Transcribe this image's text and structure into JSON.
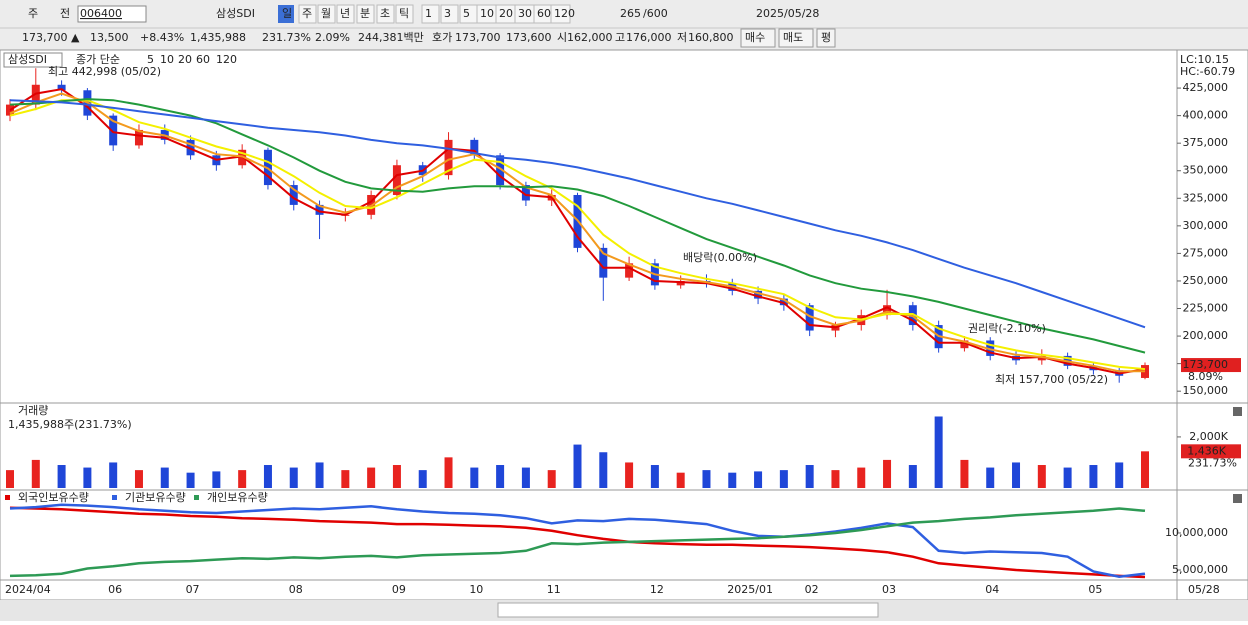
{
  "toolbar": {
    "row1": [
      "주",
      "전",
      "006400",
      "삼성SDI",
      "일",
      "주",
      "월",
      "년",
      "분",
      "초",
      "틱",
      "1",
      "3",
      "5",
      "10",
      "20",
      "30",
      "60",
      "120",
      "265",
      "/600",
      "2025/05/28"
    ],
    "row2": [
      "173,700 ▲",
      "13,500",
      "+8.43%",
      "1,435,988",
      "231.73%",
      "2.09%",
      "244,381백만",
      "호가",
      "173,700",
      "173,600",
      "시",
      "162,000",
      "고",
      "176,000",
      "저",
      "160,800",
      "매수",
      "매도",
      "평"
    ]
  },
  "chart_data": [
    {
      "type": "candlestick",
      "title": "삼성SDI",
      "subtitle": "종가 단순",
      "categories": [
        "2024/04",
        null,
        null,
        null,
        "06",
        null,
        null,
        "07",
        null,
        null,
        null,
        "08",
        null,
        null,
        null,
        "09",
        null,
        null,
        "10",
        null,
        null,
        "11",
        null,
        null,
        null,
        "12",
        null,
        null,
        "2025/01",
        null,
        null,
        "02",
        null,
        null,
        "03",
        null,
        null,
        null,
        "04",
        null,
        null,
        null,
        "05",
        null,
        null
      ],
      "open": [
        400000,
        410000,
        428000,
        423000,
        400000,
        373000,
        387000,
        378000,
        364000,
        355000,
        369000,
        337000,
        319000,
        310000,
        310000,
        328000,
        355000,
        346000,
        378000,
        364000,
        337000,
        323000,
        328000,
        280000,
        253000,
        266000,
        246000,
        250000,
        248000,
        241000,
        234000,
        228000,
        205000,
        210000,
        219000,
        228000,
        210000,
        189000,
        196000,
        182000,
        178000,
        182000,
        173000,
        169000,
        162000
      ],
      "high": [
        415000,
        442998,
        432000,
        425000,
        402000,
        392000,
        392000,
        382000,
        368000,
        374000,
        371000,
        341000,
        323000,
        316000,
        332000,
        360000,
        358000,
        385000,
        380000,
        366000,
        340000,
        333000,
        330000,
        284000,
        272000,
        270000,
        255000,
        256000,
        252000,
        245000,
        238000,
        230000,
        213000,
        224000,
        242000,
        231000,
        214000,
        200000,
        199000,
        186000,
        188000,
        185000,
        176000,
        171000,
        176000
      ],
      "low": [
        395000,
        405000,
        418000,
        396000,
        368000,
        370000,
        374000,
        360000,
        350000,
        352000,
        333000,
        314000,
        288000,
        304000,
        306000,
        324000,
        340000,
        342000,
        360000,
        333000,
        318000,
        318000,
        276000,
        232000,
        250000,
        242000,
        243000,
        244000,
        237000,
        229000,
        223000,
        200000,
        199000,
        205000,
        215000,
        205000,
        185000,
        186000,
        178000,
        174000,
        174000,
        170000,
        165000,
        157700,
        160800
      ],
      "close": [
        410000,
        428000,
        423000,
        400000,
        373000,
        387000,
        378000,
        364000,
        355000,
        369000,
        337000,
        319000,
        310000,
        310000,
        328000,
        355000,
        346000,
        378000,
        364000,
        337000,
        323000,
        328000,
        280000,
        253000,
        266000,
        246000,
        250000,
        248000,
        241000,
        234000,
        228000,
        205000,
        210000,
        219000,
        228000,
        210000,
        189000,
        196000,
        182000,
        178000,
        182000,
        173000,
        169000,
        164000,
        173700
      ],
      "up_color": "#e8231f",
      "down_color": "#1f46d8",
      "series": [
        {
          "name": "5",
          "color": "#e00000",
          "values": [
            405000,
            420000,
            424000,
            408000,
            385000,
            382000,
            380000,
            370000,
            360000,
            363000,
            345000,
            325000,
            313000,
            310000,
            322000,
            346000,
            350000,
            370000,
            368000,
            345000,
            328000,
            326000,
            290000,
            262000,
            262000,
            250000,
            249000,
            248000,
            243000,
            236000,
            230000,
            210000,
            208000,
            216000,
            226000,
            214000,
            194000,
            194000,
            185000,
            180000,
            181000,
            175000,
            171000,
            166000,
            170000
          ]
        },
        {
          "name": "10",
          "color": "#f39a1e",
          "values": [
            402000,
            412000,
            420000,
            412000,
            395000,
            386000,
            382000,
            374000,
            365000,
            363000,
            352000,
            333000,
            318000,
            312000,
            318000,
            335000,
            345000,
            360000,
            365000,
            352000,
            335000,
            328000,
            305000,
            275000,
            265000,
            256000,
            252000,
            249000,
            245000,
            239000,
            233000,
            218000,
            210000,
            214000,
            222000,
            218000,
            200000,
            195000,
            188000,
            183000,
            181000,
            177000,
            173000,
            168000,
            168000
          ]
        },
        {
          "name": "20",
          "color": "#f4f000",
          "values": [
            400000,
            406000,
            414000,
            414000,
            405000,
            394000,
            388000,
            380000,
            372000,
            366000,
            358000,
            345000,
            330000,
            318000,
            316000,
            326000,
            338000,
            350000,
            360000,
            358000,
            345000,
            334000,
            318000,
            292000,
            275000,
            263000,
            257000,
            252000,
            248000,
            243000,
            238000,
            226000,
            217000,
            215000,
            220000,
            220000,
            207000,
            199000,
            192000,
            187000,
            183000,
            180000,
            176000,
            172000,
            170000
          ]
        },
        {
          "name": "60",
          "color": "#229a3c",
          "values": [
            410000,
            411000,
            413000,
            415000,
            414000,
            410000,
            405000,
            400000,
            393000,
            383000,
            373000,
            362000,
            350000,
            340000,
            334000,
            332000,
            331000,
            334000,
            336000,
            336000,
            335000,
            336000,
            333000,
            327000,
            318000,
            308000,
            298000,
            288000,
            280000,
            272000,
            264000,
            255000,
            248000,
            243000,
            240000,
            236000,
            231000,
            225000,
            219000,
            213000,
            207000,
            202000,
            197000,
            191000,
            185000
          ]
        },
        {
          "name": "120",
          "color": "#2f5fe0",
          "values": [
            414000,
            413000,
            412000,
            410000,
            407000,
            404000,
            401000,
            398000,
            395000,
            392000,
            389000,
            387000,
            385000,
            382000,
            378000,
            375000,
            373000,
            370000,
            366000,
            362000,
            360000,
            357000,
            353000,
            348000,
            343000,
            337000,
            331000,
            325000,
            320000,
            314000,
            308000,
            302000,
            296000,
            291000,
            285000,
            278000,
            270000,
            262000,
            255000,
            248000,
            240000,
            232000,
            224000,
            216000,
            208000
          ]
        }
      ],
      "ylim": [
        142000,
        455000
      ],
      "yticks": [
        {
          "value": 150000,
          "label": "150,000"
        },
        {
          "value": 175000,
          "label": "175,000"
        },
        {
          "value": 200000,
          "label": "200,000"
        },
        {
          "value": 225000,
          "label": "225,000"
        },
        {
          "value": 250000,
          "label": "250,000"
        },
        {
          "value": 275000,
          "label": "275,000"
        },
        {
          "value": 300000,
          "label": "300,000"
        },
        {
          "value": 325000,
          "label": "325,000"
        },
        {
          "value": 350000,
          "label": "350,000"
        },
        {
          "value": 375000,
          "label": "375,000"
        },
        {
          "value": 400000,
          "label": "400,000"
        },
        {
          "value": 425000,
          "label": "425,000"
        }
      ],
      "annotations": [
        "최고 442,998 (05/02)",
        "배당락(0.00%)",
        "권리락(-2.10%)",
        "최저 157,700 (05/22)"
      ],
      "lc_label": "LC:10.15",
      "hc_label": "HC:-60.79",
      "current_label": "173,700",
      "current_change": "8.09%"
    },
    {
      "type": "bar",
      "title": "거래량",
      "subtitle": "1,435,988주(231.73%)",
      "values": [
        700,
        1100,
        900,
        800,
        1000,
        700,
        800,
        600,
        650,
        700,
        900,
        800,
        1000,
        700,
        800,
        900,
        700,
        1200,
        800,
        900,
        800,
        700,
        1700,
        1400,
        1000,
        900,
        600,
        700,
        600,
        650,
        700,
        900,
        700,
        800,
        1100,
        900,
        2800,
        1100,
        800,
        1000,
        900,
        800,
        900,
        1000,
        1436
      ],
      "ylim": [
        0,
        3250
      ],
      "yticks": [
        {
          "value": 2000,
          "label": "2,000K"
        }
      ],
      "current_label": "1,436K",
      "current_change": "231.73%"
    },
    {
      "type": "line",
      "series": [
        {
          "name": "외국인보유수량",
          "color": "#e00000",
          "values": [
            13400000,
            13300000,
            13200000,
            13000000,
            12800000,
            12600000,
            12500000,
            12300000,
            12200000,
            12000000,
            11900000,
            11800000,
            11600000,
            11500000,
            11400000,
            11200000,
            11200000,
            11100000,
            11000000,
            10900000,
            10700000,
            10300000,
            9700000,
            9200000,
            8800000,
            8600000,
            8500000,
            8400000,
            8400000,
            8300000,
            8200000,
            8100000,
            7900000,
            7700000,
            7400000,
            6800000,
            5900000,
            5600000,
            5300000,
            5000000,
            4800000,
            4600000,
            4400000,
            4200000,
            4050000
          ]
        },
        {
          "name": "기관보유수량",
          "color": "#2f5fe0",
          "values": [
            13300000,
            13500000,
            13800000,
            13700000,
            13500000,
            13200000,
            13000000,
            12800000,
            12700000,
            12900000,
            13100000,
            13300000,
            13200000,
            13400000,
            13600000,
            13200000,
            12900000,
            12700000,
            12600000,
            12400000,
            12000000,
            11300000,
            11700000,
            11600000,
            11900000,
            11800000,
            11500000,
            11200000,
            10300000,
            9600000,
            9500000,
            9800000,
            10200000,
            10700000,
            11300000,
            10800000,
            7600000,
            7300000,
            7500000,
            7400000,
            7300000,
            6800000,
            4800000,
            4100000,
            4500000
          ]
        },
        {
          "name": "개인보유수량",
          "color": "#2e9a55",
          "values": [
            4200000,
            4300000,
            4500000,
            5200000,
            5500000,
            5900000,
            6100000,
            6200000,
            6400000,
            6600000,
            6500000,
            6700000,
            6600000,
            6800000,
            6900000,
            6700000,
            7000000,
            7100000,
            7200000,
            7300000,
            7600000,
            8600000,
            8500000,
            8700000,
            8800000,
            8900000,
            9000000,
            9100000,
            9200000,
            9300000,
            9500000,
            9700000,
            10000000,
            10400000,
            10900000,
            11400000,
            11600000,
            11900000,
            12100000,
            12400000,
            12600000,
            12800000,
            13000000,
            13300000,
            13000000
          ]
        }
      ],
      "ylim": [
        3920000,
        15400000
      ],
      "yticks": [
        {
          "value": 5000000,
          "label": "5,000,000"
        },
        {
          "value": 10000000,
          "label": "10,000,000"
        }
      ],
      "x_end_label": "05/28"
    }
  ]
}
